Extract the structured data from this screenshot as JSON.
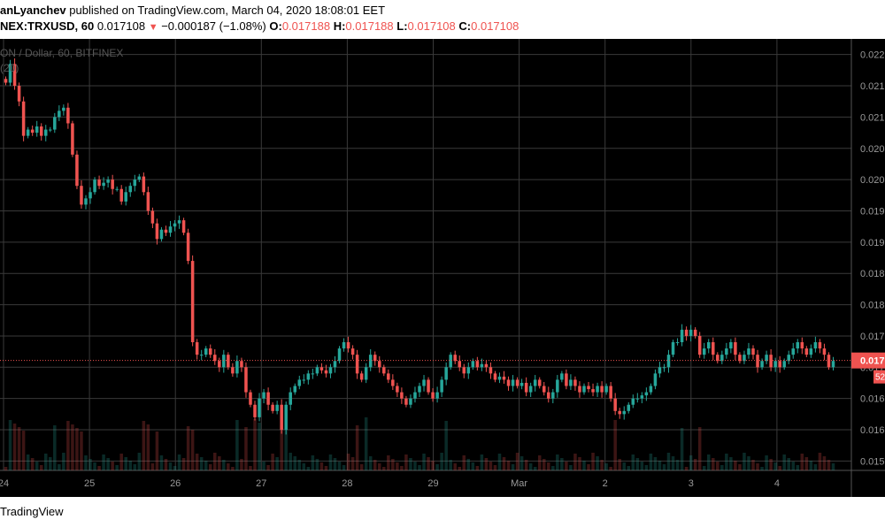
{
  "header": {
    "author": "anLyanchev",
    "published_text": " published on TradingView.com, March 04, 2020 18:08:01 EET",
    "symbol": "NEX:TRXUSD, 60",
    "last_price": "0.017108",
    "change": "−0.000187 (−1.08%)",
    "o_label": "O:",
    "o_value": "0.017188",
    "h_label": "H:",
    "h_value": "0.017188",
    "l_label": "L:",
    "l_value": "0.017108",
    "c_label": "C:",
    "c_value": "0.017108"
  },
  "legend": {
    "line1": "ON / Dollar, 60, BITFINEX",
    "line2": "(20)"
  },
  "footer": {
    "brand": "TradingView"
  },
  "colors": {
    "background": "#000000",
    "grid": "#3a3a3a",
    "up": "#26a69a",
    "down": "#ef5350",
    "price_line": "#ef5350",
    "axis_text": "#9a9a9a"
  },
  "chart_data": {
    "type": "candlestick",
    "x_tick_labels": [
      "24",
      "25",
      "26",
      "27",
      "28",
      "29",
      "Mar",
      "2",
      "3",
      "4"
    ],
    "y_tick_labels": [
      "0.022",
      "0.021",
      "0.021",
      "0.020",
      "0.020",
      "0.019",
      "0.019",
      "0.018",
      "0.018",
      "0.017",
      "0.017",
      "0.016",
      "0.016",
      "0.015"
    ],
    "y_ticks_values": [
      0.022,
      0.0215,
      0.021,
      0.0205,
      0.02,
      0.0195,
      0.019,
      0.0185,
      0.018,
      0.0175,
      0.017,
      0.0165,
      0.016,
      0.0155
    ],
    "ylim": [
      0.01535,
      0.02225
    ],
    "current_price_label": "0.017",
    "countdown_label": "52",
    "current_price": 0.017108,
    "grid": true,
    "closes": [
      0.02155,
      0.02185,
      0.0215,
      0.02125,
      0.0207,
      0.0208,
      0.02075,
      0.02085,
      0.0207,
      0.0208,
      0.0208,
      0.021,
      0.0211,
      0.02115,
      0.0209,
      0.0204,
      0.0199,
      0.0196,
      0.0197,
      0.0198,
      0.02,
      0.0199,
      0.01995,
      0.02,
      0.01985,
      0.01985,
      0.01965,
      0.0198,
      0.0199,
      0.02,
      0.02005,
      0.0198,
      0.0195,
      0.0193,
      0.01905,
      0.0192,
      0.01915,
      0.01925,
      0.0193,
      0.01935,
      0.01915,
      0.0187,
      0.0174,
      0.0172,
      0.0172,
      0.0173,
      0.0172,
      0.0171,
      0.017,
      0.0172,
      0.017,
      0.0169,
      0.0171,
      0.017,
      0.0166,
      0.0164,
      0.0162,
      0.0165,
      0.0166,
      0.0164,
      0.0163,
      0.0164,
      0.016,
      0.0164,
      0.0166,
      0.0167,
      0.0168,
      0.0168,
      0.0169,
      0.0169,
      0.017,
      0.01695,
      0.0169,
      0.017,
      0.0171,
      0.0173,
      0.0174,
      0.0173,
      0.0172,
      0.0169,
      0.0168,
      0.017,
      0.0172,
      0.0171,
      0.017,
      0.0169,
      0.0168,
      0.0167,
      0.0166,
      0.0165,
      0.0164,
      0.0165,
      0.0166,
      0.0167,
      0.0168,
      0.0166,
      0.0165,
      0.0166,
      0.0168,
      0.017,
      0.0172,
      0.0171,
      0.017,
      0.0169,
      0.017,
      0.0171,
      0.017,
      0.01705,
      0.017,
      0.0169,
      0.0168,
      0.01685,
      0.0168,
      0.0167,
      0.0168,
      0.0167,
      0.01675,
      0.0166,
      0.0167,
      0.0168,
      0.0167,
      0.0166,
      0.0165,
      0.0166,
      0.0168,
      0.0169,
      0.0167,
      0.0168,
      0.0167,
      0.0166,
      0.0167,
      0.01665,
      0.0166,
      0.0167,
      0.0166,
      0.0167,
      0.0165,
      0.0163,
      0.01625,
      0.0163,
      0.0164,
      0.0165,
      0.0165,
      0.01655,
      0.0166,
      0.0167,
      0.0169,
      0.017,
      0.017,
      0.0172,
      0.0174,
      0.0174,
      0.0176,
      0.0175,
      0.0176,
      0.0175,
      0.0172,
      0.0173,
      0.0174,
      0.0172,
      0.0171,
      0.0172,
      0.0173,
      0.0174,
      0.0172,
      0.0171,
      0.0172,
      0.0173,
      0.0172,
      0.017,
      0.0171,
      0.0172,
      0.017,
      0.0171,
      0.017,
      0.0171,
      0.0172,
      0.0173,
      0.0174,
      0.0173,
      0.0172,
      0.0173,
      0.0174,
      0.0173,
      0.0172,
      0.017,
      0.0171
    ]
  }
}
